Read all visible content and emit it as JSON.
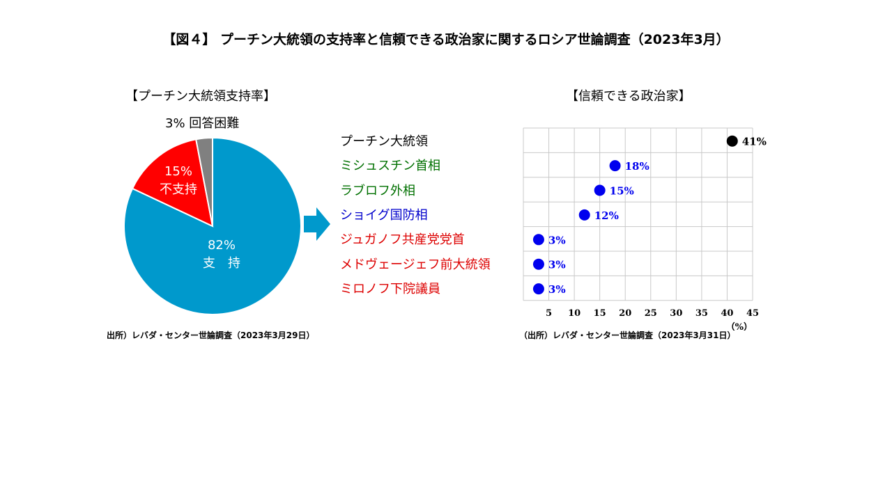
{
  "title": "【図４】 プーチン大統領の支持率と信頼できる政治家に関するロシア世論調査（2023年3月）",
  "colors": {
    "support": "#0099cc",
    "oppose": "#ff0000",
    "no_answer": "#808080",
    "arrow": "#0099cc",
    "putin": "#000000",
    "blue_group": "#0000ee",
    "green_text": "#007000",
    "blue_text": "#0000cc",
    "red_text": "#dd0000"
  },
  "chart_data": [
    {
      "type": "pie",
      "title": "【プーチン大統領支持率】",
      "slices": [
        {
          "key": "support",
          "label": "支　持",
          "value": 82,
          "value_label": "82%"
        },
        {
          "key": "oppose",
          "label": "不支持",
          "value": 15,
          "value_label": "15%"
        },
        {
          "key": "no_answer",
          "label": "3% 回答困難",
          "value": 3,
          "value_label": "3%"
        }
      ],
      "source": "出所）レバダ・センター世論調査（2023年3月29日）"
    },
    {
      "type": "scatter",
      "title": "【信頼できる政治家】",
      "xlim": [
        0,
        45
      ],
      "xticks": [
        5,
        10,
        15,
        20,
        25,
        30,
        35,
        40,
        45
      ],
      "xunit": "（%）",
      "grid": true,
      "points": [
        {
          "name": "プーチン大統領",
          "value": 41,
          "value_label": "41%",
          "dot": "putin",
          "text": "putin"
        },
        {
          "name": "ミシュスチン首相",
          "value": 18,
          "value_label": "18%",
          "dot": "blue_group",
          "text": "green_text"
        },
        {
          "name": "ラブロフ外相",
          "value": 15,
          "value_label": "15%",
          "dot": "blue_group",
          "text": "green_text"
        },
        {
          "name": "ショイグ国防相",
          "value": 12,
          "value_label": "12%",
          "dot": "blue_group",
          "text": "blue_text"
        },
        {
          "name": "ジュガノフ共産党党首",
          "value": 3,
          "value_label": "3%",
          "dot": "blue_group",
          "text": "red_text"
        },
        {
          "name": "メドヴェージェフ前大統領",
          "value": 3,
          "value_label": "3%",
          "dot": "blue_group",
          "text": "red_text"
        },
        {
          "name": "ミロノフ下院議員",
          "value": 3,
          "value_label": "3%",
          "dot": "blue_group",
          "text": "red_text"
        }
      ],
      "source": "（出所）レバダ・センター世論調査（2023年3月31日）"
    }
  ]
}
